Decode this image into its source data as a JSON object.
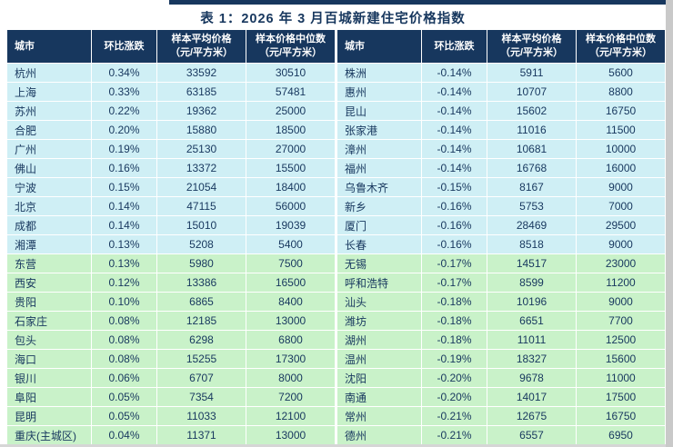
{
  "title": "表 1：2026 年 3 月百城新建住宅价格指数",
  "colors": {
    "header_navy": "#17375e",
    "row_blue": "#cfeff5",
    "row_green": "#c9f2c9",
    "text_navy": "#17375e"
  },
  "columns": {
    "city": "城市",
    "change": "环比涨跌",
    "avg_line1": "样本平均价格",
    "avg_line2": "（元/平方米）",
    "median_line1": "样本价格中位数",
    "median_line2": "（元/平方米）"
  },
  "left": {
    "rows": [
      {
        "city": "杭州",
        "change": "0.34%",
        "avg": "33592",
        "median": "30510",
        "group": "blue"
      },
      {
        "city": "上海",
        "change": "0.33%",
        "avg": "63185",
        "median": "57481",
        "group": "blue"
      },
      {
        "city": "苏州",
        "change": "0.22%",
        "avg": "19362",
        "median": "25000",
        "group": "blue"
      },
      {
        "city": "合肥",
        "change": "0.20%",
        "avg": "15880",
        "median": "18500",
        "group": "blue"
      },
      {
        "city": "广州",
        "change": "0.19%",
        "avg": "25130",
        "median": "27000",
        "group": "blue"
      },
      {
        "city": "佛山",
        "change": "0.16%",
        "avg": "13372",
        "median": "15500",
        "group": "blue"
      },
      {
        "city": "宁波",
        "change": "0.15%",
        "avg": "21054",
        "median": "18400",
        "group": "blue"
      },
      {
        "city": "北京",
        "change": "0.14%",
        "avg": "47115",
        "median": "56000",
        "group": "blue"
      },
      {
        "city": "成都",
        "change": "0.14%",
        "avg": "15010",
        "median": "19039",
        "group": "blue"
      },
      {
        "city": "湘潭",
        "change": "0.13%",
        "avg": "5208",
        "median": "5400",
        "group": "blue"
      },
      {
        "city": "东营",
        "change": "0.13%",
        "avg": "5980",
        "median": "7500",
        "group": "green"
      },
      {
        "city": "西安",
        "change": "0.12%",
        "avg": "13386",
        "median": "16500",
        "group": "green"
      },
      {
        "city": "贵阳",
        "change": "0.10%",
        "avg": "6865",
        "median": "8400",
        "group": "green"
      },
      {
        "city": "石家庄",
        "change": "0.08%",
        "avg": "12185",
        "median": "13000",
        "group": "green"
      },
      {
        "city": "包头",
        "change": "0.08%",
        "avg": "6298",
        "median": "6800",
        "group": "green"
      },
      {
        "city": "海口",
        "change": "0.08%",
        "avg": "15255",
        "median": "17300",
        "group": "green"
      },
      {
        "city": "银川",
        "change": "0.06%",
        "avg": "6707",
        "median": "8000",
        "group": "green"
      },
      {
        "city": "阜阳",
        "change": "0.05%",
        "avg": "7354",
        "median": "7200",
        "group": "green"
      },
      {
        "city": "昆明",
        "change": "0.05%",
        "avg": "11033",
        "median": "12100",
        "group": "green"
      },
      {
        "city": "重庆(主城区)",
        "change": "0.04%",
        "avg": "11371",
        "median": "13000",
        "group": "green"
      }
    ]
  },
  "right": {
    "rows": [
      {
        "city": "株洲",
        "change": "-0.14%",
        "avg": "5911",
        "median": "5600",
        "group": "blue"
      },
      {
        "city": "惠州",
        "change": "-0.14%",
        "avg": "10707",
        "median": "8800",
        "group": "blue"
      },
      {
        "city": "昆山",
        "change": "-0.14%",
        "avg": "15602",
        "median": "16750",
        "group": "blue"
      },
      {
        "city": "张家港",
        "change": "-0.14%",
        "avg": "11016",
        "median": "11500",
        "group": "blue"
      },
      {
        "city": "漳州",
        "change": "-0.14%",
        "avg": "10681",
        "median": "10000",
        "group": "blue"
      },
      {
        "city": "福州",
        "change": "-0.14%",
        "avg": "16768",
        "median": "16000",
        "group": "blue"
      },
      {
        "city": "乌鲁木齐",
        "change": "-0.15%",
        "avg": "8167",
        "median": "9000",
        "group": "blue"
      },
      {
        "city": "新乡",
        "change": "-0.16%",
        "avg": "5753",
        "median": "7000",
        "group": "blue"
      },
      {
        "city": "厦门",
        "change": "-0.16%",
        "avg": "28469",
        "median": "29500",
        "group": "blue"
      },
      {
        "city": "长春",
        "change": "-0.16%",
        "avg": "8518",
        "median": "9000",
        "group": "blue"
      },
      {
        "city": "无锡",
        "change": "-0.17%",
        "avg": "14517",
        "median": "23000",
        "group": "green"
      },
      {
        "city": "呼和浩特",
        "change": "-0.17%",
        "avg": "8599",
        "median": "11200",
        "group": "green"
      },
      {
        "city": "汕头",
        "change": "-0.18%",
        "avg": "10196",
        "median": "9000",
        "group": "green"
      },
      {
        "city": "潍坊",
        "change": "-0.18%",
        "avg": "6651",
        "median": "7700",
        "group": "green"
      },
      {
        "city": "湖州",
        "change": "-0.18%",
        "avg": "11011",
        "median": "12500",
        "group": "green"
      },
      {
        "city": "温州",
        "change": "-0.19%",
        "avg": "18327",
        "median": "15600",
        "group": "green"
      },
      {
        "city": "沈阳",
        "change": "-0.20%",
        "avg": "9678",
        "median": "11000",
        "group": "green"
      },
      {
        "city": "南通",
        "change": "-0.20%",
        "avg": "14017",
        "median": "17500",
        "group": "green"
      },
      {
        "city": "常州",
        "change": "-0.21%",
        "avg": "12675",
        "median": "16750",
        "group": "green"
      },
      {
        "city": "德州",
        "change": "-0.21%",
        "avg": "6557",
        "median": "6950",
        "group": "green"
      }
    ]
  },
  "chart_data": {
    "type": "table",
    "title": "表 1：2026 年 3 月百城新建住宅价格指数",
    "columns": [
      "城市",
      "环比涨跌",
      "样本平均价格（元/平方米）",
      "样本价格中位数（元/平方米）"
    ],
    "note": "left panel = positive month-over-month change cities, right panel = negative change cities; blue rows then green rows within each panel"
  }
}
